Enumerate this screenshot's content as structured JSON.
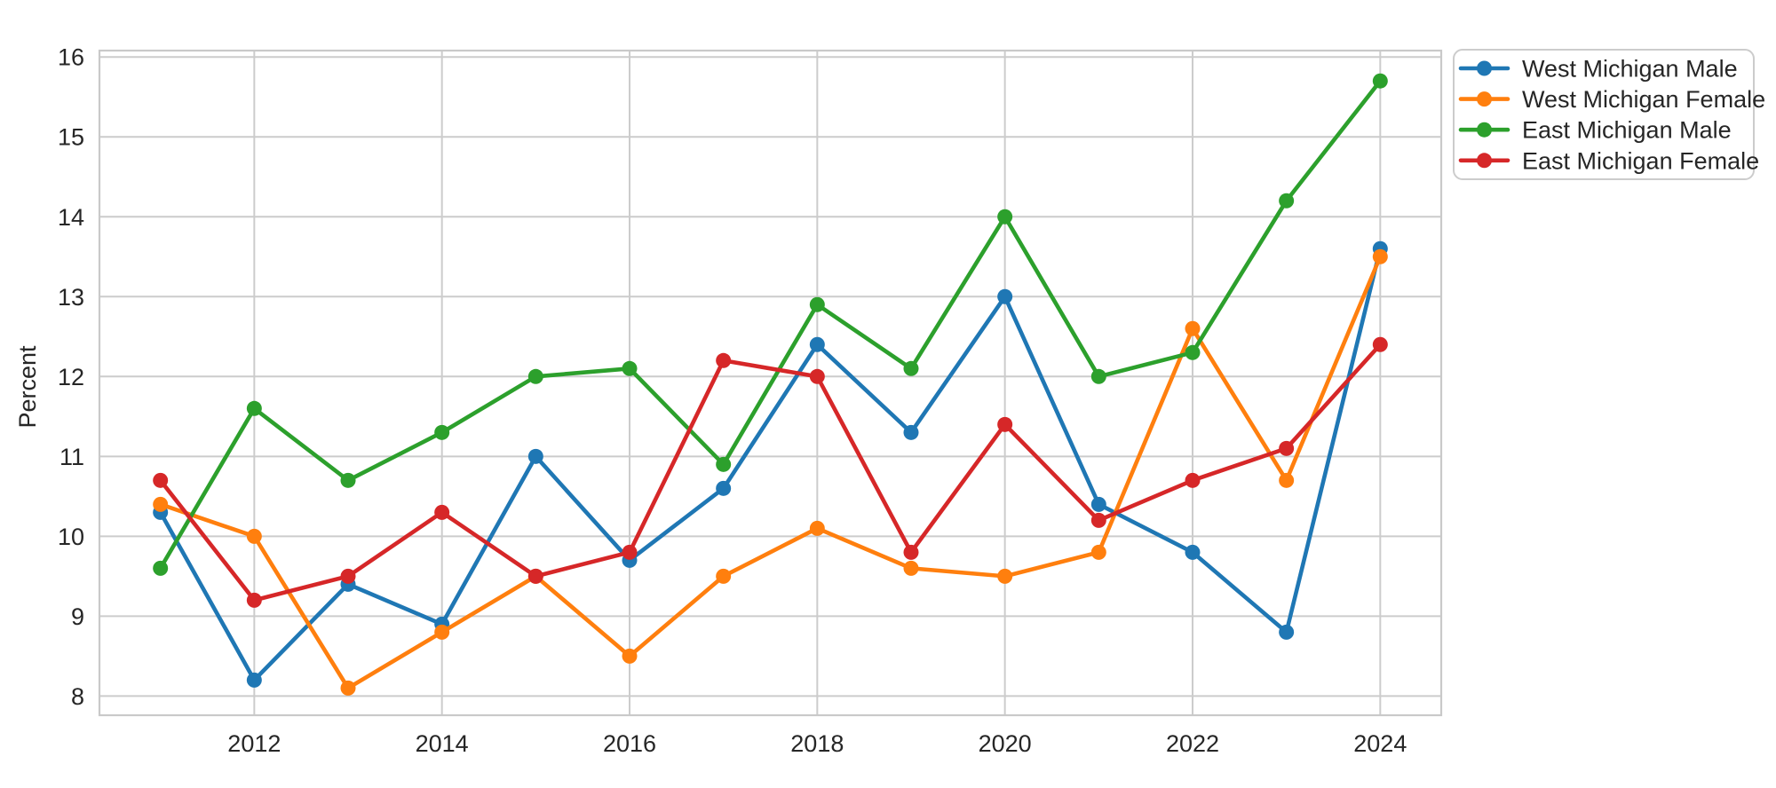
{
  "chart_data": {
    "type": "line",
    "title": "",
    "xlabel": "",
    "ylabel": "Percent",
    "x": [
      2011,
      2012,
      2013,
      2014,
      2015,
      2016,
      2017,
      2018,
      2019,
      2020,
      2021,
      2022,
      2023,
      2024
    ],
    "series": [
      {
        "name": "West Michigan Male",
        "color": "#1f77b4",
        "values": [
          10.3,
          8.2,
          9.4,
          8.9,
          11.0,
          9.7,
          10.6,
          12.4,
          11.3,
          13.0,
          10.4,
          9.8,
          8.8,
          13.6
        ]
      },
      {
        "name": "West Michigan Female",
        "color": "#ff7f0e",
        "values": [
          10.4,
          10.0,
          8.1,
          8.8,
          9.5,
          8.5,
          9.5,
          10.1,
          9.6,
          9.5,
          9.8,
          12.6,
          10.7,
          13.5
        ]
      },
      {
        "name": "East Michigan Male",
        "color": "#2ca02c",
        "values": [
          9.6,
          11.6,
          10.7,
          11.3,
          12.0,
          12.1,
          10.9,
          12.9,
          12.1,
          14.0,
          12.0,
          12.3,
          14.2,
          15.7
        ]
      },
      {
        "name": "East Michigan Female",
        "color": "#d62728",
        "values": [
          10.7,
          9.2,
          9.5,
          10.3,
          9.5,
          9.8,
          12.2,
          12.0,
          9.8,
          11.4,
          10.2,
          10.7,
          11.1,
          12.4
        ]
      }
    ],
    "xticks": [
      2012,
      2014,
      2016,
      2018,
      2020,
      2022,
      2024
    ],
    "yticks": [
      8,
      9,
      10,
      11,
      12,
      13,
      14,
      15,
      16
    ],
    "xlim": [
      2010.35,
      2024.65
    ],
    "ylim": [
      7.76,
      16.08
    ],
    "grid": true,
    "legend_position": "outside-upper-right",
    "styles": {
      "background": "#ffffff",
      "grid_color": "#cccccc",
      "spine_color": "#c9c9c9",
      "text_color": "#262626",
      "marker": "circle"
    }
  }
}
